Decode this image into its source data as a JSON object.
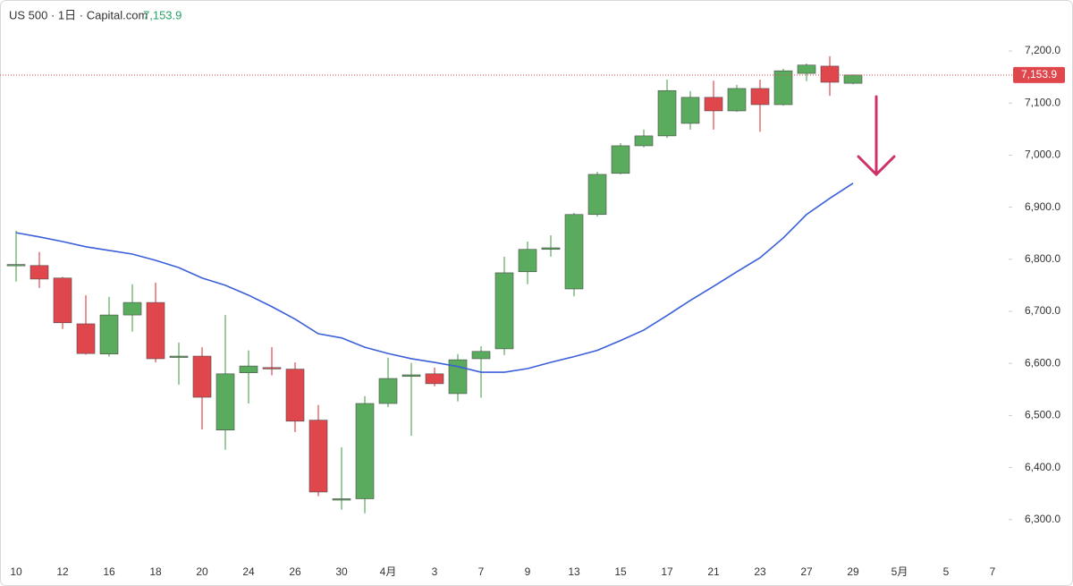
{
  "chart_data": {
    "type": "candlestick",
    "title": "US 500 · 1日 · Capital.com",
    "last_price": {
      "value": 7153.9,
      "label": "7,153.9"
    },
    "categories": [
      "10",
      null,
      "12",
      null,
      "16",
      null,
      "18",
      null,
      "20",
      null,
      "24",
      null,
      "26",
      null,
      "30",
      null,
      "4月",
      null,
      "3",
      null,
      "7",
      null,
      "9",
      null,
      "13",
      null,
      "15",
      null,
      "17",
      null,
      "21",
      null,
      "23",
      null,
      "27",
      null,
      "29",
      null,
      "5月",
      null,
      "5",
      null,
      "7"
    ],
    "open": [
      6788,
      6788,
      6764,
      6676,
      6618,
      6693,
      6717,
      6613,
      6614,
      6472,
      6582,
      6592,
      6589,
      6491,
      6338,
      6340,
      6523,
      6575,
      6580,
      6542,
      6609,
      6628,
      6776,
      6819,
      6743,
      6886,
      6965,
      7018,
      7037,
      7061,
      7111,
      7085,
      7128,
      7097,
      7157,
      7171,
      7138,
      null,
      null,
      null,
      null,
      null,
      null
    ],
    "high": [
      6855,
      6814,
      6766,
      6731,
      6728,
      6752,
      6755,
      6640,
      6631,
      6693,
      6625,
      6631,
      6602,
      6520,
      6439,
      6537,
      6611,
      6601,
      6592,
      6618,
      6633,
      6805,
      6834,
      6846,
      6889,
      6968,
      7023,
      7049,
      7145,
      7123,
      7143,
      7135,
      7145,
      7166,
      7176,
      7190,
      7155,
      null,
      null,
      null,
      null,
      null,
      null
    ],
    "low": [
      6757,
      6745,
      6666,
      6617,
      6613,
      6661,
      6602,
      6559,
      6473,
      6434,
      6523,
      6577,
      6468,
      6345,
      6319,
      6312,
      6516,
      6461,
      6556,
      6527,
      6534,
      6616,
      6752,
      6805,
      6729,
      6882,
      6963,
      7015,
      7033,
      7049,
      7049,
      7083,
      7045,
      7095,
      7142,
      7114,
      7136,
      null,
      null,
      null,
      null,
      null,
      null
    ],
    "close": [
      6790,
      6762,
      6678,
      6619,
      6693,
      6717,
      6609,
      6614,
      6535,
      6580,
      6595,
      6591,
      6489,
      6353,
      6340,
      6523,
      6571,
      6578,
      6561,
      6607,
      6623,
      6774,
      6819,
      6822,
      6886,
      6963,
      7018,
      7037,
      7124,
      7111,
      7085,
      7128,
      7097,
      7162,
      7173,
      7140,
      7153.9,
      null,
      null,
      null,
      null,
      null,
      null
    ],
    "up_color": "#5aab5d",
    "down_color": "#e0474c",
    "moving_average": {
      "color": "#3a5fd9",
      "values": [
        6851,
        6843,
        6834,
        6824,
        6817,
        6810,
        6798,
        6784,
        6764,
        6750,
        6731,
        6709,
        6685,
        6657,
        6649,
        6631,
        6619,
        6609,
        6602,
        6594,
        6583,
        6583,
        6590,
        6602,
        6613,
        6625,
        6644,
        6664,
        6692,
        6721,
        6748,
        6776,
        6803,
        6841,
        6886,
        6917,
        6946,
        null,
        null,
        null,
        null,
        null,
        null
      ]
    },
    "ylim": [
      6224,
      7298
    ],
    "yticks": [
      {
        "value": 6300,
        "label": "6,300.0"
      },
      {
        "value": 6400,
        "label": "6,400.0"
      },
      {
        "value": 6500,
        "label": "6,500.0"
      },
      {
        "value": 6600,
        "label": "6,600.0"
      },
      {
        "value": 6700,
        "label": "6,700.0"
      },
      {
        "value": 6800,
        "label": "6,800.0"
      },
      {
        "value": 6900,
        "label": "6,900.0"
      },
      {
        "value": 7000,
        "label": "7,000.0"
      },
      {
        "value": 7100,
        "label": "7,100.0"
      },
      {
        "value": 7200,
        "label": "7,200.0"
      }
    ]
  }
}
